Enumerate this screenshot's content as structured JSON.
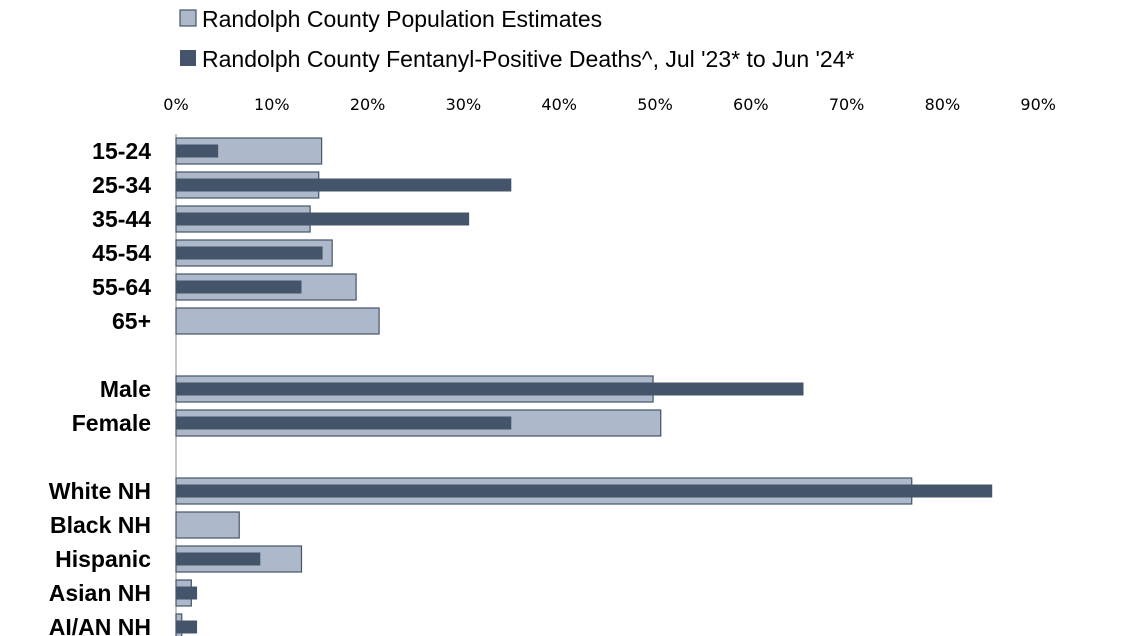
{
  "chart_data": {
    "type": "bar",
    "orientation": "horizontal",
    "title": "",
    "xlabel": "",
    "ylabel": "",
    "xlim": [
      0,
      90
    ],
    "tick_labels": [
      "0%",
      "10%",
      "20%",
      "30%",
      "40%",
      "50%",
      "60%",
      "70%",
      "80%",
      "90%"
    ],
    "grid": false,
    "legend_position": "top-left",
    "categories": [
      "15-24",
      "25-34",
      "35-44",
      "45-54",
      "55-64",
      "65+",
      "Male",
      "Female",
      "White NH",
      "Black NH",
      "Hispanic",
      "Asian NH",
      "AI/AN NH"
    ],
    "category_gaps_after": [
      "65+",
      "Female"
    ],
    "series": [
      {
        "name": "Randolph County Population Estimates",
        "color": "#adb9ca",
        "values": [
          15.2,
          14.9,
          14.0,
          16.3,
          18.8,
          21.2,
          49.8,
          50.6,
          76.8,
          6.6,
          13.1,
          1.6,
          0.6
        ]
      },
      {
        "name": "Randolph County Fentanyl-Positive Deaths^, Jul '23* to Jun '24*",
        "color": "#44546a",
        "values": [
          4.4,
          35.0,
          30.6,
          15.3,
          13.1,
          0.0,
          65.5,
          35.0,
          85.2,
          0.0,
          8.8,
          2.2,
          2.2
        ]
      }
    ]
  }
}
